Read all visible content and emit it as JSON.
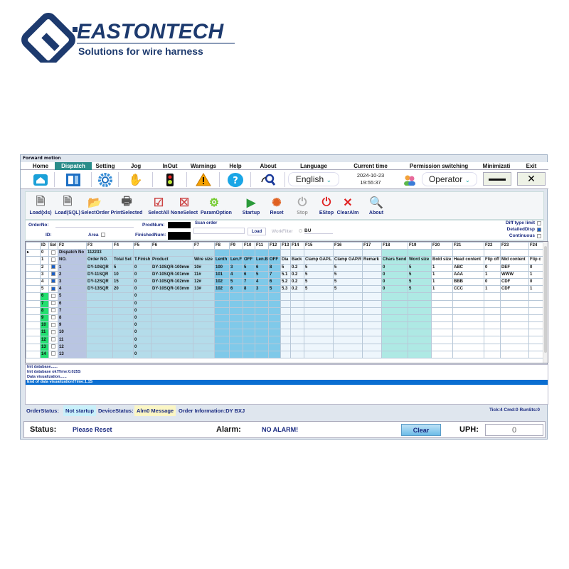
{
  "logo": {
    "name": "EASTONTECH",
    "tagline": "Solutions for wire harness"
  },
  "window": {
    "title": "Forward motion"
  },
  "menu": [
    "Home",
    "Dispatch",
    "Setting",
    "Jog",
    "InOut",
    "Warnings",
    "Help",
    "About",
    "Language",
    "Current time",
    "Permission switching",
    "Minimizati",
    "Exit"
  ],
  "active_tab": "Dispatch",
  "language": "English",
  "current_time": {
    "date": "2024-10-23",
    "time": "19:55:37"
  },
  "permission": "Operator",
  "toolbar": [
    "Load(xls)",
    "Load(SQL)",
    "SelectOrder",
    "PrintSelected",
    "SelectAll",
    "NoneSelect",
    "ParamOption",
    "Startup",
    "Reset",
    "Stop",
    "EStop",
    "ClearAlm",
    "About"
  ],
  "form": {
    "order_no_label": "OrderNo:",
    "id_label": "ID:",
    "area_label": "Area",
    "prod_num_label": "ProdNum:",
    "finished_num_label": "FinishedNum:",
    "scan_order_label": "Scan order",
    "load_label": "Load",
    "work_filter_label": "WorkFilter",
    "work_filter_value": "BU",
    "diff_type_limit": "Diff type limit",
    "detailed_disp": "DetailedDisp",
    "continuous": "Continuous",
    "detailed_disp_checked": true
  },
  "grid": {
    "headers": [
      "ID",
      "Sel",
      "F2",
      "F3",
      "F4",
      "F5",
      "F6",
      "F7",
      "F8",
      "F9",
      "F10",
      "F11",
      "F12",
      "F13",
      "F14",
      "F15",
      "F16",
      "F17",
      "F18",
      "F19",
      "F20",
      "F21",
      "F22",
      "F23",
      "F24"
    ],
    "rows": [
      [
        "0",
        false,
        "Dispatch No",
        "112233",
        "",
        "",
        "",
        "",
        "",
        "",
        "",
        "",
        "",
        "",
        "",
        "",
        "",
        "",
        "",
        "",
        "",
        "",
        "",
        "",
        ""
      ],
      [
        "1",
        false,
        "NO.",
        "Order NO.",
        "Total Set",
        "T.Finish",
        "Product",
        "Wire size",
        "Lenth",
        "Len.F",
        "OFF",
        "Len.B",
        "OFF",
        "Dia",
        "Back",
        "Clamp GAP.L",
        "Clamp GAP.R",
        "Remark",
        "Chars Send",
        "Word size",
        "Bold size",
        "Head content",
        "Flip off",
        "Mid content",
        "Flip c"
      ],
      [
        "2",
        true,
        "1",
        "DY-10SQR",
        "5",
        "0",
        "DY-10SQR-100mm",
        "10#",
        "100",
        "3",
        "5",
        "6",
        "8",
        "5",
        "0.2",
        "5",
        "5",
        "",
        "0",
        "5",
        "1",
        "ABC",
        "0",
        "DEF",
        "0"
      ],
      [
        "3",
        true,
        "2",
        "DY-11SQR",
        "10",
        "0",
        "DY-10SQR-101mm",
        "11#",
        "101",
        "4",
        "6",
        "5",
        "7",
        "5.1",
        "0.2",
        "5",
        "5",
        "",
        "0",
        "5",
        "1",
        "AAA",
        "1",
        "WWW",
        "1"
      ],
      [
        "4",
        true,
        "3",
        "DY-12SQR",
        "15",
        "0",
        "DY-10SQR-102mm",
        "12#",
        "102",
        "5",
        "7",
        "4",
        "6",
        "5.2",
        "0.2",
        "5",
        "5",
        "",
        "0",
        "5",
        "1",
        "BBB",
        "0",
        "CDF",
        "0"
      ],
      [
        "5",
        true,
        "4",
        "DY-13SQR",
        "20",
        "0",
        "DY-10SQR-103mm",
        "13#",
        "102",
        "6",
        "8",
        "3",
        "5",
        "5.3",
        "0.2",
        "5",
        "5",
        "",
        "0",
        "5",
        "1",
        "CCC",
        "1",
        "CDF",
        "1"
      ],
      [
        "6",
        false,
        "5",
        "",
        "",
        "0",
        "",
        "",
        "",
        "",
        "",
        "",
        "",
        "",
        "",
        "",
        "",
        "",
        "",
        "",
        "",
        "",
        "",
        "",
        ""
      ],
      [
        "7",
        false,
        "6",
        "",
        "",
        "0",
        "",
        "",
        "",
        "",
        "",
        "",
        "",
        "",
        "",
        "",
        "",
        "",
        "",
        "",
        "",
        "",
        "",
        "",
        ""
      ],
      [
        "8",
        false,
        "7",
        "",
        "",
        "0",
        "",
        "",
        "",
        "",
        "",
        "",
        "",
        "",
        "",
        "",
        "",
        "",
        "",
        "",
        "",
        "",
        "",
        "",
        ""
      ],
      [
        "9",
        false,
        "8",
        "",
        "",
        "0",
        "",
        "",
        "",
        "",
        "",
        "",
        "",
        "",
        "",
        "",
        "",
        "",
        "",
        "",
        "",
        "",
        "",
        "",
        ""
      ],
      [
        "10",
        false,
        "9",
        "",
        "",
        "0",
        "",
        "",
        "",
        "",
        "",
        "",
        "",
        "",
        "",
        "",
        "",
        "",
        "",
        "",
        "",
        "",
        "",
        "",
        ""
      ],
      [
        "11",
        false,
        "10",
        "",
        "",
        "0",
        "",
        "",
        "",
        "",
        "",
        "",
        "",
        "",
        "",
        "",
        "",
        "",
        "",
        "",
        "",
        "",
        "",
        "",
        ""
      ],
      [
        "12",
        false,
        "11",
        "",
        "",
        "0",
        "",
        "",
        "",
        "",
        "",
        "",
        "",
        "",
        "",
        "",
        "",
        "",
        "",
        "",
        "",
        "",
        "",
        "",
        ""
      ],
      [
        "13",
        false,
        "12",
        "",
        "",
        "0",
        "",
        "",
        "",
        "",
        "",
        "",
        "",
        "",
        "",
        "",
        "",
        "",
        "",
        "",
        "",
        "",
        "",
        "",
        ""
      ],
      [
        "14",
        false,
        "13",
        "",
        "",
        "0",
        "",
        "",
        "",
        "",
        "",
        "",
        "",
        "",
        "",
        "",
        "",
        "",
        "",
        "",
        "",
        "",
        "",
        "",
        ""
      ]
    ]
  },
  "log": [
    "Init database......",
    "Init database ok!Time:0.025S",
    "Data visualization......",
    "End of data visualization!Time:1.1S"
  ],
  "status_row": {
    "order_status_label": "OrderStatus:",
    "order_status": "Not startup",
    "device_status_label": "DeviceStatus:",
    "device_status": "Alm0 Message",
    "order_info": "Order Information:DY BXJ",
    "tick": "Tick:4 Cmd:0 RunSts:0"
  },
  "bottom": {
    "status_label": "Status:",
    "status": "Please Reset",
    "alarm_label": "Alarm:",
    "alarm": "NO ALARM!",
    "clear": "Clear",
    "uph_label": "UPH:",
    "uph": "0"
  },
  "colors": {
    "brand": "#1d3a6e",
    "active_tab": "#2a8c8a",
    "id_green": "#22e070",
    "highlight": "#0a6ed1"
  }
}
